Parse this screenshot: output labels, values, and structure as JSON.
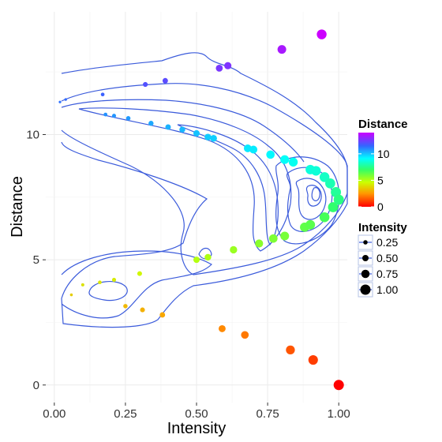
{
  "chart_data": {
    "type": "scatter",
    "xlabel": "Intensity",
    "ylabel": "Distance",
    "xlim": [
      -0.03,
      1.03
    ],
    "ylim": [
      -0.7,
      14.9
    ],
    "x_ticks": [
      0,
      0.25,
      0.5,
      0.75,
      1
    ],
    "x_tick_labels": [
      "0.00",
      "0.25",
      "0.50",
      "0.75",
      "1.00"
    ],
    "y_ticks": [
      0,
      5,
      10
    ],
    "y_tick_labels": [
      "0",
      "5",
      "10"
    ],
    "grid": true,
    "background": "#ffffff",
    "grid_color": "#ebebeb",
    "contour_color": "#3b5bdb",
    "points": [
      {
        "x": 0.06,
        "y": 3.6
      },
      {
        "x": 0.1,
        "y": 4.0
      },
      {
        "x": 0.16,
        "y": 4.1
      },
      {
        "x": 0.21,
        "y": 4.2
      },
      {
        "x": 0.25,
        "y": 3.15
      },
      {
        "x": 0.3,
        "y": 4.45
      },
      {
        "x": 0.31,
        "y": 3.0
      },
      {
        "x": 0.38,
        "y": 2.8
      },
      {
        "x": 0.5,
        "y": 5.0
      },
      {
        "x": 0.54,
        "y": 5.1
      },
      {
        "x": 0.63,
        "y": 5.4
      },
      {
        "x": 0.59,
        "y": 2.25
      },
      {
        "x": 0.67,
        "y": 2.0
      },
      {
        "x": 0.72,
        "y": 5.65
      },
      {
        "x": 0.77,
        "y": 5.85
      },
      {
        "x": 0.81,
        "y": 5.95
      },
      {
        "x": 0.83,
        "y": 1.4
      },
      {
        "x": 0.88,
        "y": 6.3
      },
      {
        "x": 0.9,
        "y": 6.4
      },
      {
        "x": 0.91,
        "y": 1.0
      },
      {
        "x": 0.95,
        "y": 6.7
      },
      {
        "x": 0.98,
        "y": 7.1
      },
      {
        "x": 1.0,
        "y": 0.0
      },
      {
        "x": 0.02,
        "y": 11.3
      },
      {
        "x": 0.04,
        "y": 11.4
      },
      {
        "x": 0.17,
        "y": 11.6
      },
      {
        "x": 0.18,
        "y": 10.8
      },
      {
        "x": 0.21,
        "y": 10.75
      },
      {
        "x": 0.26,
        "y": 10.65
      },
      {
        "x": 0.32,
        "y": 12.0
      },
      {
        "x": 0.34,
        "y": 10.45
      },
      {
        "x": 0.39,
        "y": 12.15
      },
      {
        "x": 0.4,
        "y": 10.3
      },
      {
        "x": 0.45,
        "y": 10.2
      },
      {
        "x": 0.5,
        "y": 10.05
      },
      {
        "x": 0.54,
        "y": 9.9
      },
      {
        "x": 0.56,
        "y": 9.85
      },
      {
        "x": 0.58,
        "y": 12.65
      },
      {
        "x": 0.61,
        "y": 12.75
      },
      {
        "x": 0.68,
        "y": 9.45
      },
      {
        "x": 0.7,
        "y": 9.4
      },
      {
        "x": 0.76,
        "y": 9.2
      },
      {
        "x": 0.8,
        "y": 13.4
      },
      {
        "x": 0.81,
        "y": 9.0
      },
      {
        "x": 0.84,
        "y": 8.9
      },
      {
        "x": 0.9,
        "y": 8.6
      },
      {
        "x": 0.92,
        "y": 8.55
      },
      {
        "x": 0.94,
        "y": 14.0
      },
      {
        "x": 0.95,
        "y": 8.3
      },
      {
        "x": 0.97,
        "y": 8.05
      },
      {
        "x": 0.99,
        "y": 7.7
      },
      {
        "x": 1.0,
        "y": 7.4
      }
    ],
    "legend_color": {
      "title": "Distance",
      "ticks": [
        0,
        5,
        10
      ],
      "tick_labels": [
        "0",
        "5",
        "10"
      ],
      "range": [
        0,
        14
      ]
    },
    "legend_size": {
      "title": "Intensity",
      "values": [
        0.25,
        0.5,
        0.75,
        1.0
      ],
      "labels": [
        "0.25",
        "0.50",
        "0.75",
        "1.00"
      ]
    }
  }
}
